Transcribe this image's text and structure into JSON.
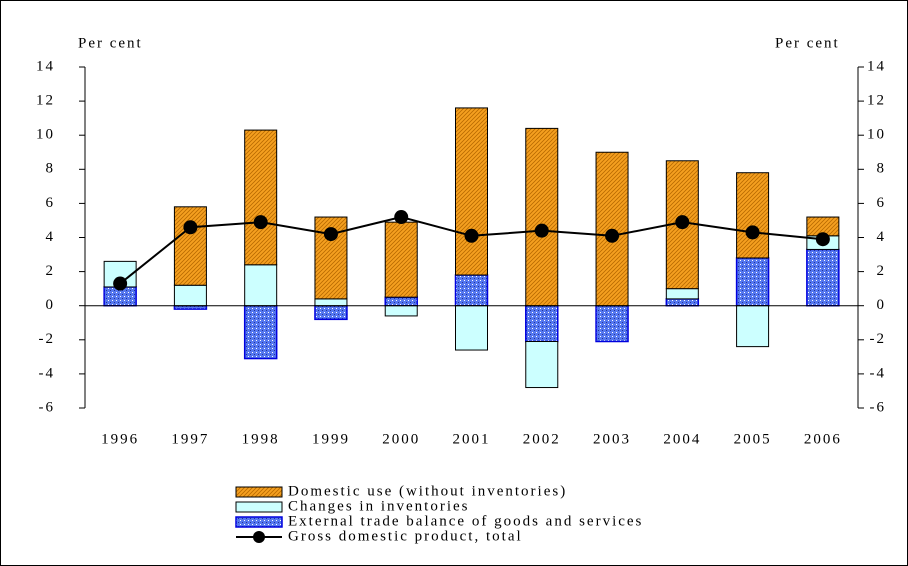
{
  "chart_data": {
    "type": "bar",
    "y_label": "Per cent",
    "y2_label": "Per cent",
    "categories": [
      "1996",
      "1997",
      "1998",
      "1999",
      "2000",
      "2001",
      "2002",
      "2003",
      "2004",
      "2005",
      "2006"
    ],
    "series": [
      {
        "name": "Domestic use (without inventories)",
        "color": "#f5a020",
        "type": "bar",
        "values": [
          0,
          4.6,
          7.9,
          4.8,
          4.4,
          9.8,
          10.4,
          9.0,
          7.5,
          5.0,
          1.1
        ]
      },
      {
        "name": "Changes in inventories",
        "color": "#ccffff",
        "type": "bar",
        "values": [
          1.5,
          1.2,
          2.4,
          0.4,
          -0.6,
          -2.6,
          -2.7,
          0,
          0.6,
          -2.4,
          0.8
        ]
      },
      {
        "name": "External trade balance of goods and services",
        "color": "#5577ee",
        "type": "bar",
        "values": [
          1.1,
          -0.2,
          -3.1,
          -0.8,
          0.5,
          1.8,
          -2.1,
          -2.1,
          0.4,
          2.8,
          3.3
        ]
      },
      {
        "name": "Gross domestic product, total",
        "color": "#000000",
        "type": "line",
        "values": [
          1.3,
          4.6,
          4.9,
          4.2,
          5.2,
          4.1,
          4.4,
          4.1,
          4.9,
          4.3,
          3.9
        ]
      }
    ],
    "ylim": [
      -6,
      14
    ],
    "yticks": [
      -6,
      -4,
      -2,
      0,
      2,
      4,
      6,
      8,
      10,
      12,
      14
    ],
    "y2lim": [
      -6,
      14
    ],
    "y2ticks": [
      -6,
      -4,
      -2,
      0,
      2,
      4,
      6,
      8,
      10,
      12,
      14
    ]
  }
}
